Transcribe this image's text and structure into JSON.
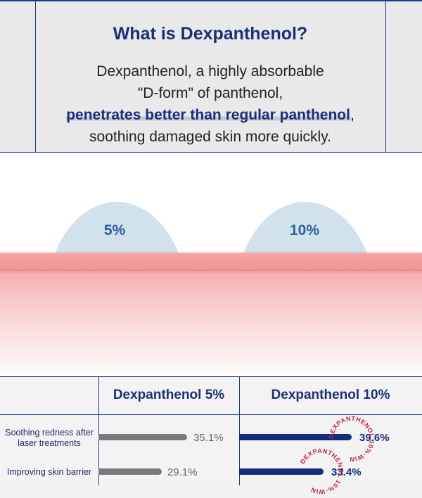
{
  "info": {
    "title": "What is Dexpanthenol?",
    "line1": "Dexpanthenol, a highly absorbable",
    "line2": "\"D-form\" of panthenol,",
    "highlight": "penetrates better than regular panthenol",
    "comma": ",",
    "line4": "soothing damaged skin more quickly."
  },
  "illustration": {
    "drop_5": "5%",
    "drop_10": "10%"
  },
  "table": {
    "col1_header": "Dexpanthenol 5%",
    "col2_header": "Dexpanthenol 10%",
    "rows": [
      {
        "label": "Soothing redness after laser treatments",
        "value_5": "35.1%",
        "value_10": "39.6%",
        "fraction_5": 0.351,
        "fraction_10": 0.396
      },
      {
        "label": "Improving skin barrier",
        "value_5": "29.1%",
        "value_10": "33.4%",
        "fraction_5": 0.291,
        "fraction_10": 0.334
      }
    ],
    "stamp_text": "DEXPANTHENOL 10%·WIN"
  },
  "colors": {
    "navy": "#1a2f7a",
    "bar_gray": "#7a7a7a",
    "bar_navy": "#132c7c",
    "stamp_red": "#c0273e",
    "skin_pink": "#f19595",
    "drop_blue": "#cfe0ec"
  }
}
